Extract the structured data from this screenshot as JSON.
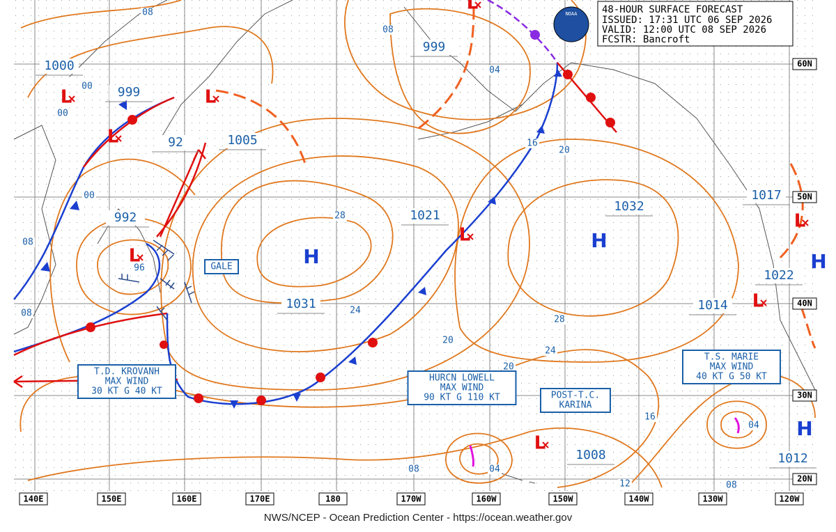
{
  "header": {
    "title": "48-HOUR SURFACE FORECAST",
    "issued": "ISSUED: 17:31 UTC 06 SEP 2026",
    "valid": "VALID:  12:00 UTC 08 SEP 2026",
    "forecaster": "FCSTR:  Bancroft"
  },
  "logo": "NOAA",
  "longitude_labels": [
    "140E",
    "150E",
    "160E",
    "170E",
    "180",
    "170W",
    "160W",
    "150W",
    "140W",
    "130W",
    "120W"
  ],
  "latitude_labels": [
    "60N",
    "50N",
    "40N",
    "30N",
    "20N"
  ],
  "pressure_labels": [
    "1000",
    "999",
    "992",
    "92",
    "1005",
    "999",
    "1021",
    "1032",
    "1031",
    "1017",
    "1022",
    "1014",
    "1008",
    "1012"
  ],
  "isobar_labels": [
    "08",
    "00",
    "00",
    "00",
    "08",
    "08",
    "08",
    "04",
    "28",
    "24",
    "16",
    "20",
    "28",
    "24",
    "20",
    "20",
    "16",
    "12",
    "08",
    "04",
    "08",
    "04",
    "96"
  ],
  "high_centers": [
    "H",
    "H",
    "H",
    "H"
  ],
  "low_centers": [
    "L",
    "L",
    "L",
    "L",
    "L",
    "L",
    "L",
    "L",
    "L"
  ],
  "storms": [
    {
      "lines": [
        "T.D. KROVANH",
        "MAX WIND",
        "30 KT G 40 KT"
      ]
    },
    {
      "lines": [
        "HURCN LOWELL",
        "MAX WIND",
        "90 KT G 110 KT"
      ]
    },
    {
      "lines": [
        "T.S. MARIE",
        "MAX WIND",
        "40 KT G 50 KT"
      ]
    },
    {
      "lines": [
        "POST-T.C.",
        "KARINA"
      ]
    }
  ],
  "gale": "GALE",
  "footer": "NWS/NCEP - Ocean Prediction Center - https://ocean.weather.gov"
}
